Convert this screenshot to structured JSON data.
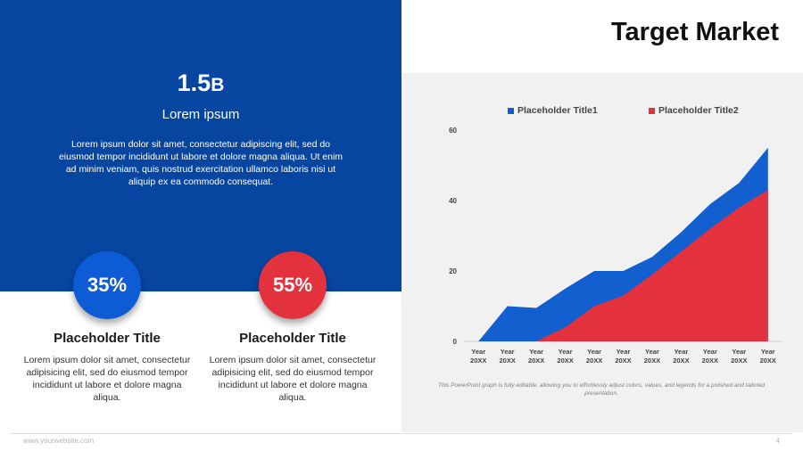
{
  "slide": {
    "title": "Target Market",
    "footer_url": "www.yourwebsite.com",
    "page_number": "4"
  },
  "left": {
    "big_number": "1.5",
    "big_number_unit": "B",
    "sub_label": "Lorem ipsum",
    "body": "Lorem ipsum dolor sit amet, consectetur adipiscing elit, sed do eiusmod tempor incididunt ut labore et dolore magna aliqua. Ut enim ad minim veniam, quis nostrud exercitation ullamco laboris nisi ut aliquip ex ea commodo consequat.",
    "stats": [
      {
        "percent": "35%",
        "title": "Placeholder Title",
        "body": "Lorem ipsum dolor sit amet, consectetur adipisicing elit, sed do eiusmod tempor incididunt ut labore et dolore magna aliqua.",
        "color": "#0e5bd6"
      },
      {
        "percent": "55%",
        "title": "Placeholder Title",
        "body": "Lorem ipsum dolor sit amet, consectetur adipisicing elit, sed do eiusmod tempor incididunt ut labore et dolore magna aliqua.",
        "color": "#e3313d"
      }
    ]
  },
  "colors": {
    "primary_blue": "#0646a0",
    "series1": "#1260d0",
    "series2": "#e3313d"
  },
  "caption": "This PowerPoint graph is fully editable, allowing you to effortlessly adjust colors, values, and legends for a polished and tailored presentation.",
  "chart_data": {
    "type": "area",
    "categories": [
      "Year 20XX",
      "Year 20XX",
      "Year 20XX",
      "Year 20XX",
      "Year 20XX",
      "Year 20XX",
      "Year 20XX",
      "Year 20XX",
      "Year 20XX",
      "Year 20XX",
      "Year 20XX"
    ],
    "series": [
      {
        "name": "Placeholder Title1",
        "values": [
          0,
          10,
          9.5,
          15,
          20,
          20,
          24,
          31,
          39,
          45,
          55
        ],
        "color": "#1260d0"
      },
      {
        "name": "Placeholder Title2",
        "values": [
          0,
          0,
          0,
          4,
          10,
          13,
          19,
          25.5,
          32,
          38,
          43
        ],
        "color": "#e3313d"
      }
    ],
    "ylim": [
      0,
      60
    ],
    "yticks": [
      0,
      20,
      40,
      60
    ],
    "legend_position": "top",
    "grid": false
  }
}
